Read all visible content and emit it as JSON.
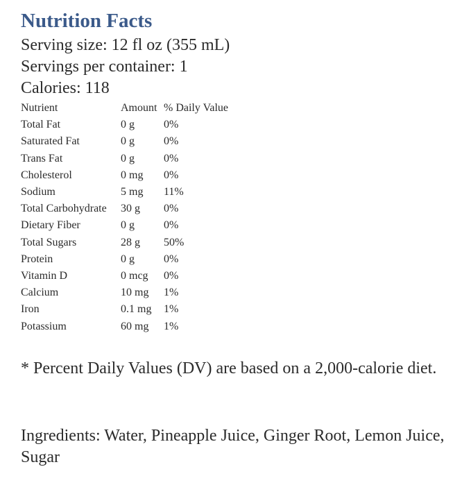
{
  "title": "Nutrition Facts",
  "serving_size": "Serving size: 12 fl oz (355 mL)",
  "servings_per_container": "Servings per container: 1",
  "calories": "Calories: 118",
  "table": {
    "headers": [
      "Nutrient",
      "Amount",
      "% Daily Value"
    ],
    "rows": [
      {
        "nutrient": "Total Fat",
        "amount": "0 g",
        "dv": "0%"
      },
      {
        "nutrient": "Saturated Fat",
        "amount": "0 g",
        "dv": "0%"
      },
      {
        "nutrient": "Trans Fat",
        "amount": "0 g",
        "dv": "0%"
      },
      {
        "nutrient": "Cholesterol",
        "amount": "0 mg",
        "dv": "0%"
      },
      {
        "nutrient": "Sodium",
        "amount": "5 mg",
        "dv": "11%"
      },
      {
        "nutrient": "Total Carbohydrate",
        "amount": "30 g",
        "dv": "0%"
      },
      {
        "nutrient": "Dietary Fiber",
        "amount": "0 g",
        "dv": "0%"
      },
      {
        "nutrient": "Total Sugars",
        "amount": "28 g",
        "dv": "50%"
      },
      {
        "nutrient": "Protein",
        "amount": "0 g",
        "dv": "0%"
      },
      {
        "nutrient": "Vitamin D",
        "amount": "0 mcg",
        "dv": "0%"
      },
      {
        "nutrient": "Calcium",
        "amount": "10 mg",
        "dv": "1%"
      },
      {
        "nutrient": "Iron",
        "amount": "0.1 mg",
        "dv": "1%"
      },
      {
        "nutrient": "Potassium",
        "amount": "60 mg",
        "dv": "1%"
      }
    ]
  },
  "footnote": "* Percent Daily Values (DV) are based on a 2,000-calorie diet.",
  "ingredients": "Ingredients: Water, Pineapple Juice, Ginger Root, Lemon Juice, Sugar",
  "colors": {
    "title": "#3b5a8a",
    "text": "#2b2b2b",
    "background": "#ffffff"
  }
}
